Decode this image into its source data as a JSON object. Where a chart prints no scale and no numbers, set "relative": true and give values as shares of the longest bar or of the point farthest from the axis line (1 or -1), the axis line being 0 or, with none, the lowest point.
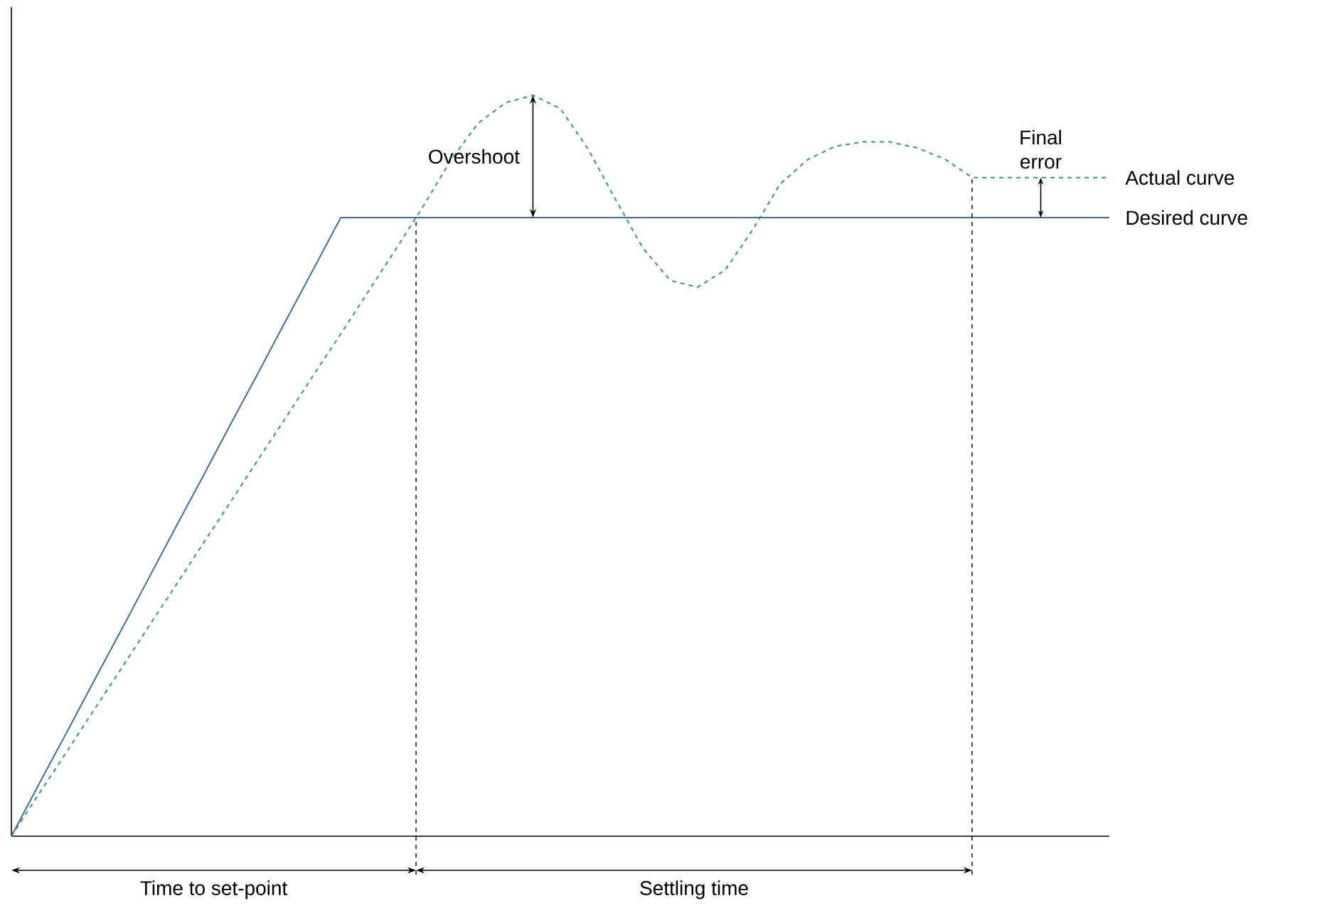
{
  "chart_data": {
    "type": "line",
    "relative": true,
    "tick_labels": false,
    "legend": false,
    "marker": "none",
    "categories": [
      null,
      null,
      null,
      null,
      null,
      null,
      null,
      null,
      null,
      null,
      null,
      null,
      null,
      null,
      null,
      null,
      null,
      null,
      null,
      null,
      null,
      null,
      null,
      null,
      null,
      null,
      null,
      null,
      null,
      null,
      null,
      null,
      null,
      null,
      null,
      null,
      null,
      null,
      null,
      null,
      null
    ],
    "series": [
      {
        "name": "Desired curve",
        "color": "#3a6ea5",
        "line_style": "solid",
        "values": [
          0,
          0.07,
          0.139,
          0.209,
          0.278,
          0.348,
          0.418,
          0.487,
          0.557,
          0.626,
          0.696,
          0.765,
          0.835,
          0.835,
          0.835,
          0.835,
          0.835,
          0.835,
          0.835,
          0.835,
          0.835,
          0.835,
          0.835,
          0.835,
          0.835,
          0.835,
          0.835,
          0.835,
          0.835,
          0.835,
          0.835,
          0.835,
          0.835,
          0.835,
          0.835,
          0.835,
          0.835,
          0.835,
          0.835,
          0.835,
          0.835
        ]
      },
      {
        "name": "Actual curve",
        "color": "#2ca05a",
        "line_style": "dashed",
        "values": [
          0,
          0.057,
          0.113,
          0.17,
          0.226,
          0.283,
          0.339,
          0.396,
          0.452,
          0.509,
          0.565,
          0.622,
          0.678,
          0.735,
          0.792,
          0.85,
          0.912,
          0.962,
          0.99,
          1,
          0.982,
          0.928,
          0.86,
          0.794,
          0.75,
          0.741,
          0.764,
          0.818,
          0.88,
          0.913,
          0.931,
          0.937,
          0.937,
          0.929,
          0.914,
          0.889,
          0.889,
          0.889,
          0.889,
          0.889,
          0.889
        ]
      }
    ],
    "annotations": [
      "Overshoot",
      "Final error",
      "Time to set-point",
      "Settling time"
    ]
  }
}
